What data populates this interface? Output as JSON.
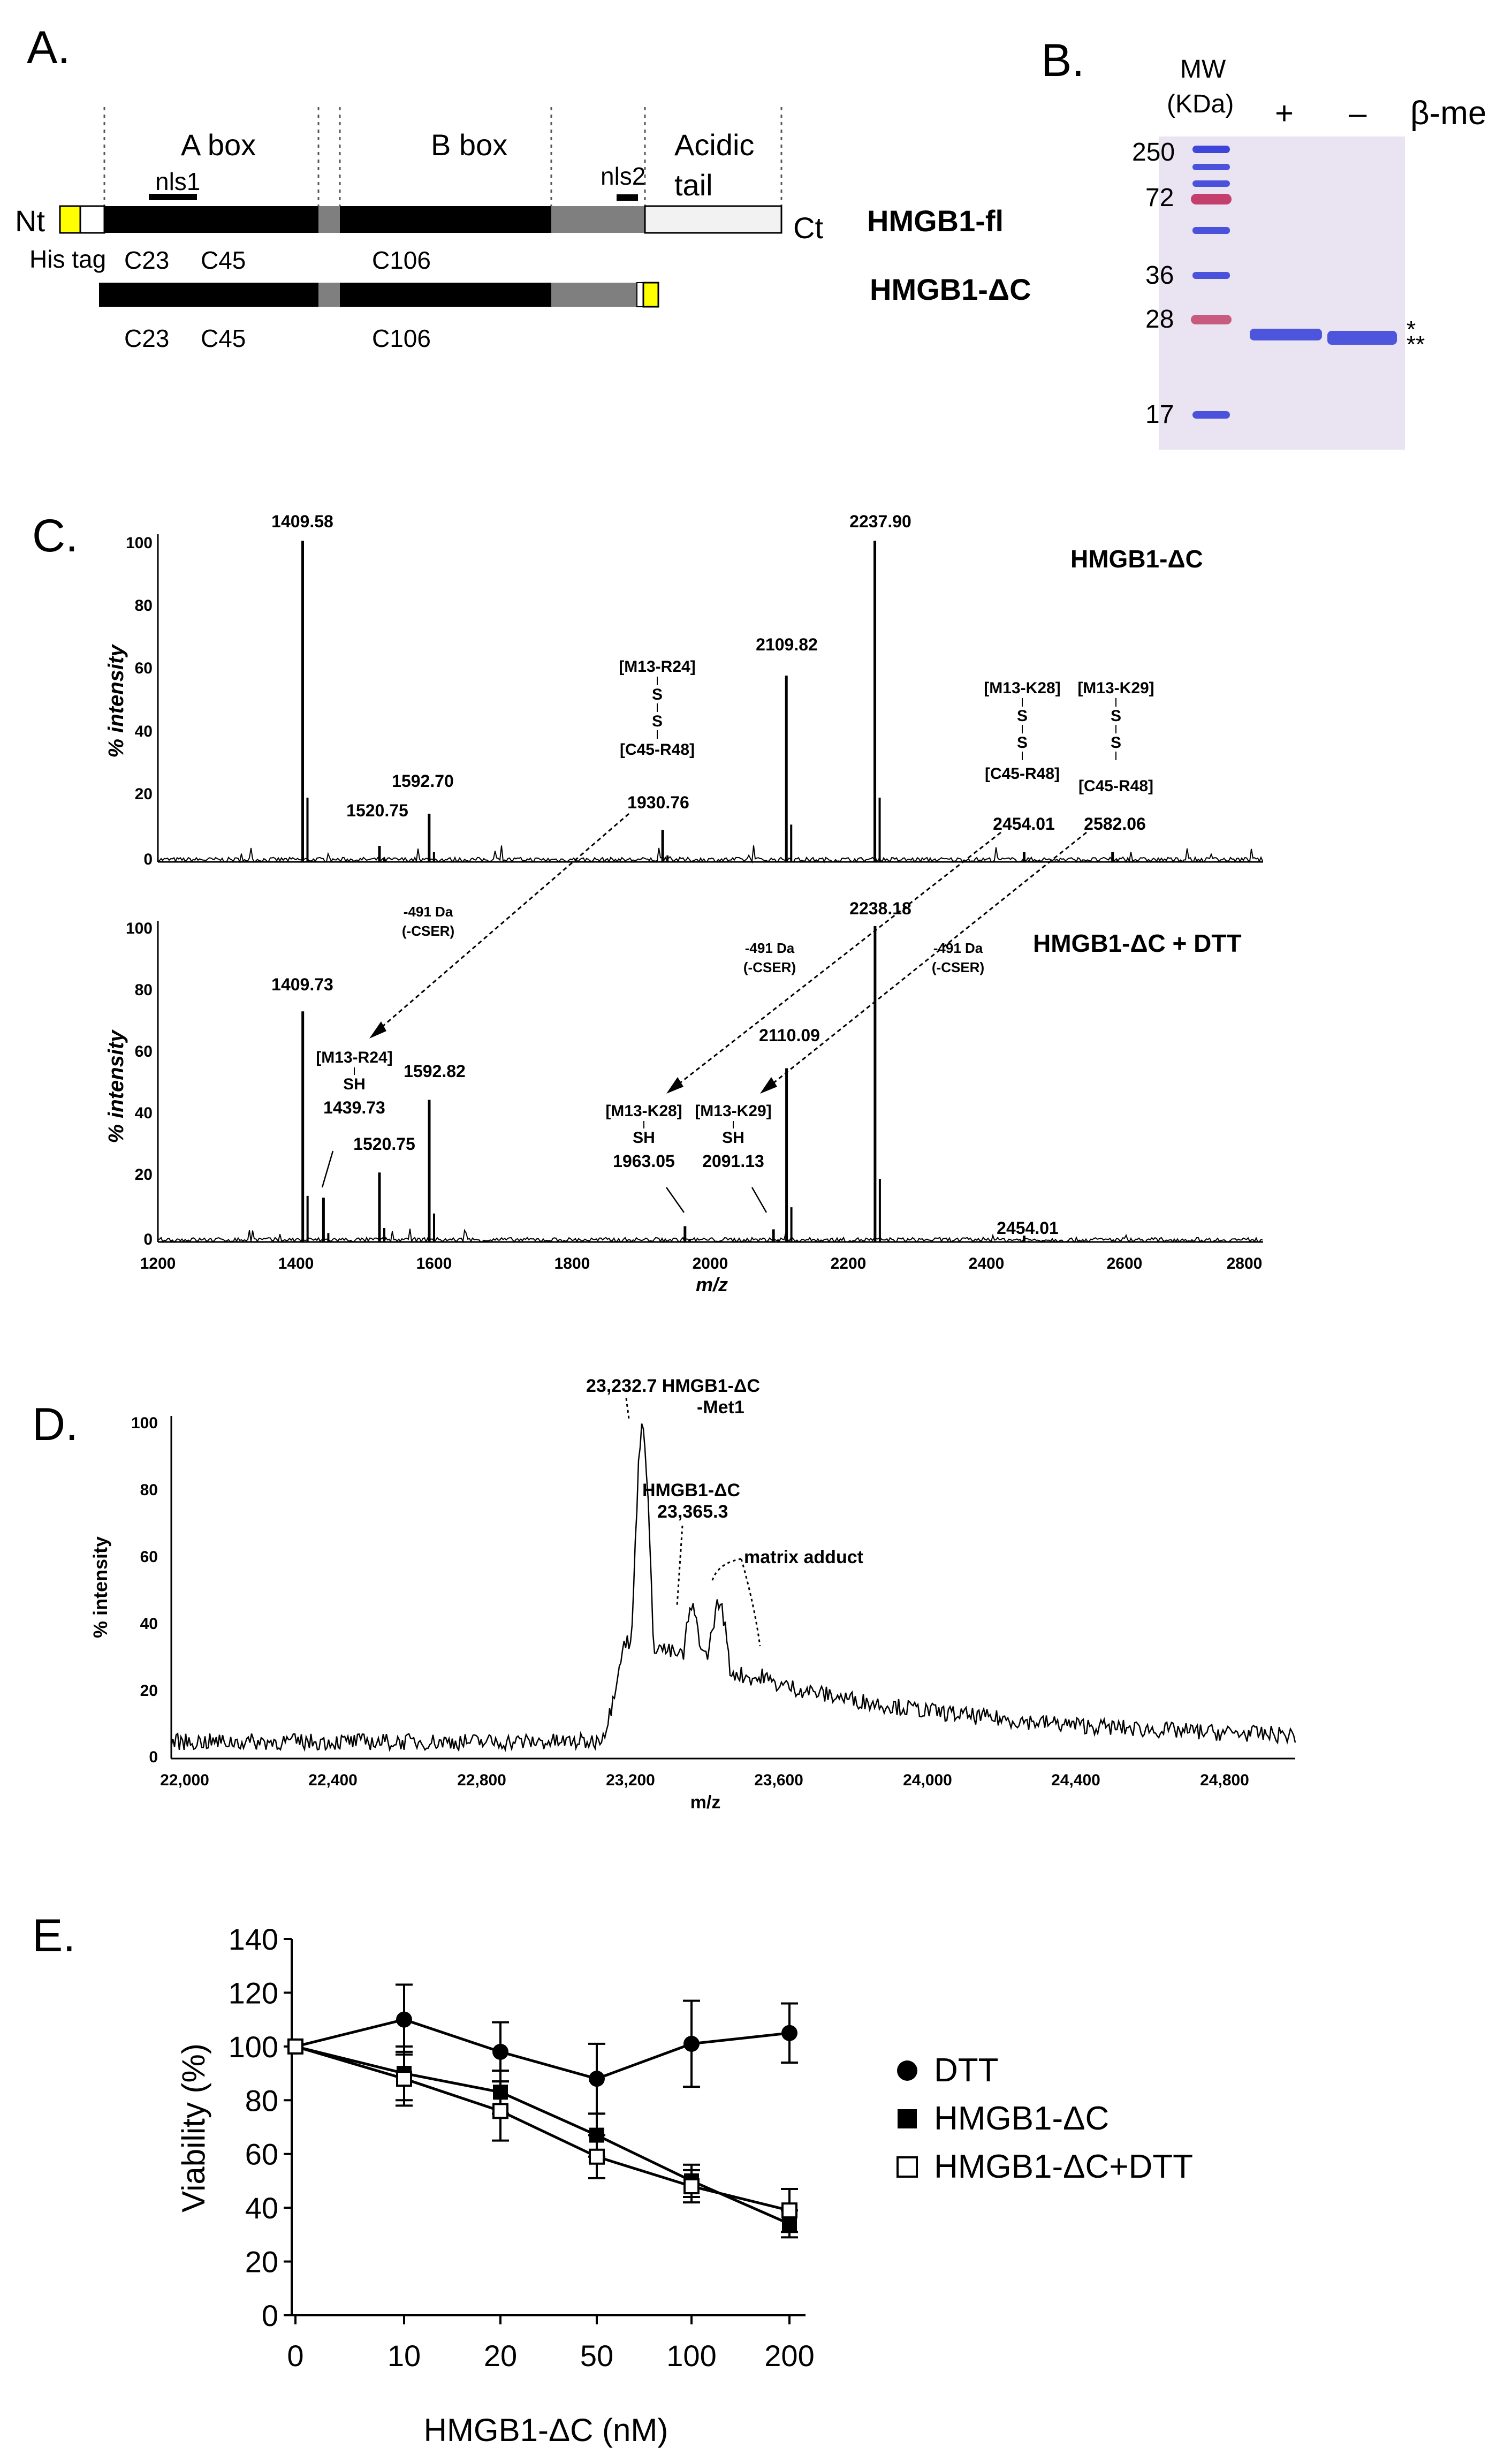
{
  "panels": {
    "A": {
      "letter": "A.",
      "domain_labels": [
        "A box",
        "B box",
        "Acidic",
        "tail"
      ],
      "nls": [
        "nls1",
        "nls2"
      ],
      "termini": [
        "Nt",
        "Ct"
      ],
      "his_tag": "His tag",
      "cysteines": [
        "C23",
        "C45",
        "C106"
      ],
      "constructs": [
        "HMGB1-fl",
        "HMGB1-ΔC"
      ]
    },
    "B": {
      "letter": "B.",
      "mw_header": [
        "MW",
        "(KDa)"
      ],
      "mw_markers": [
        "250",
        "72",
        "36",
        "28",
        "17"
      ],
      "lane_labels": [
        "+",
        "–",
        "β-me"
      ],
      "band_marks": [
        "*",
        "**"
      ]
    },
    "C": {
      "letter": "C.",
      "ylabel": "% intensity",
      "xlabel": "m/z",
      "yticks": [
        "100",
        "80",
        "60",
        "40",
        "20",
        "0"
      ],
      "xticks": [
        "1200",
        "1400",
        "1600",
        "1800",
        "2000",
        "2200",
        "2400",
        "2600",
        "2800"
      ],
      "top_title": "HMGB1-ΔC",
      "bottom_title": "HMGB1-ΔC + DTT",
      "top_peaks": [
        "1409.58",
        "1520.75",
        "1592.70",
        "1930.76",
        "2109.82",
        "2237.90",
        "2454.01",
        "2582.06"
      ],
      "bottom_peaks": [
        "1409.73",
        "1439.73",
        "1520.75",
        "1592.82",
        "1963.05",
        "2091.13",
        "2110.09",
        "2238.18",
        "2454.01"
      ],
      "fragments": [
        "[M13-R24]",
        "[C45-R48]",
        "[M13-K28]",
        "[M13-K29]"
      ],
      "bond_s": "S",
      "sh": "SH",
      "loss": [
        "-491 Da",
        "(-CSER)"
      ]
    },
    "D": {
      "letter": "D.",
      "ylabel": "% intensity",
      "xlabel": "m/z",
      "yticks": [
        "100",
        "80",
        "60",
        "40",
        "20",
        "0"
      ],
      "xticks": [
        "22,000",
        "22,400",
        "22,800",
        "23,200",
        "23,600",
        "24,000",
        "24,400",
        "24,800"
      ],
      "annotations": [
        "23,232.7 HMGB1-ΔC",
        "-Met1",
        "HMGB1-ΔC",
        "23,365.3",
        "matrix adduct"
      ]
    },
    "E": {
      "letter": "E.",
      "ylabel": "Viability (%)",
      "xlabel": "HMGB1-ΔC (nM)"
    }
  },
  "chart_data": [
    {
      "type": "line",
      "panel": "C-top",
      "title": "HMGB1-ΔC",
      "xlabel": "m/z",
      "ylabel": "% intensity",
      "xlim": [
        1200,
        2800
      ],
      "ylim": [
        0,
        100
      ],
      "peaks": [
        {
          "mz": 1409.58,
          "y": 100
        },
        {
          "mz": 1520.75,
          "y": 5
        },
        {
          "mz": 1592.7,
          "y": 15
        },
        {
          "mz": 1930.76,
          "y": 10
        },
        {
          "mz": 2109.82,
          "y": 58
        },
        {
          "mz": 2237.9,
          "y": 100
        },
        {
          "mz": 2454.01,
          "y": 3
        },
        {
          "mz": 2582.06,
          "y": 3
        }
      ]
    },
    {
      "type": "line",
      "panel": "C-bottom",
      "title": "HMGB1-ΔC + DTT",
      "xlabel": "m/z",
      "ylabel": "% intensity",
      "xlim": [
        1200,
        2800
      ],
      "ylim": [
        0,
        100
      ],
      "peaks": [
        {
          "mz": 1409.73,
          "y": 73
        },
        {
          "mz": 1439.73,
          "y": 14
        },
        {
          "mz": 1520.75,
          "y": 22
        },
        {
          "mz": 1592.82,
          "y": 45
        },
        {
          "mz": 1963.05,
          "y": 5
        },
        {
          "mz": 2091.13,
          "y": 4
        },
        {
          "mz": 2110.09,
          "y": 55
        },
        {
          "mz": 2238.18,
          "y": 100
        },
        {
          "mz": 2454.01,
          "y": 2
        }
      ]
    },
    {
      "type": "line",
      "panel": "D",
      "xlabel": "m/z",
      "ylabel": "% intensity",
      "xlim": [
        22000,
        25000
      ],
      "ylim": [
        0,
        100
      ],
      "peaks": [
        {
          "mz": 23232.7,
          "y": 100
        },
        {
          "mz": 23365.3,
          "y": 44
        },
        {
          "mz": 23440,
          "y": 46
        },
        {
          "mz": 23560,
          "y": 25
        }
      ]
    },
    {
      "type": "line",
      "panel": "E",
      "xlabel": "HMGB1-ΔC (nM)",
      "ylabel": "Viability (%)",
      "categories": [
        "0",
        "10",
        "20",
        "50",
        "100",
        "200"
      ],
      "ylim": [
        0,
        140
      ],
      "yticks": [
        "0",
        "20",
        "40",
        "60",
        "80",
        "100",
        "120",
        "140"
      ],
      "series": [
        {
          "name": "DTT",
          "values": [
            100,
            110,
            98,
            88,
            101,
            105
          ],
          "errors": [
            0,
            13,
            11,
            13,
            16,
            11
          ]
        },
        {
          "name": "HMGB1-ΔC",
          "values": [
            100,
            90,
            83,
            67,
            50,
            34
          ],
          "errors": [
            0,
            10,
            8,
            8,
            6,
            5
          ]
        },
        {
          "name": "HMGB1-ΔC+DTT",
          "values": [
            100,
            88,
            76,
            59,
            48,
            39
          ],
          "errors": [
            0,
            10,
            11,
            8,
            6,
            8
          ]
        }
      ]
    }
  ]
}
